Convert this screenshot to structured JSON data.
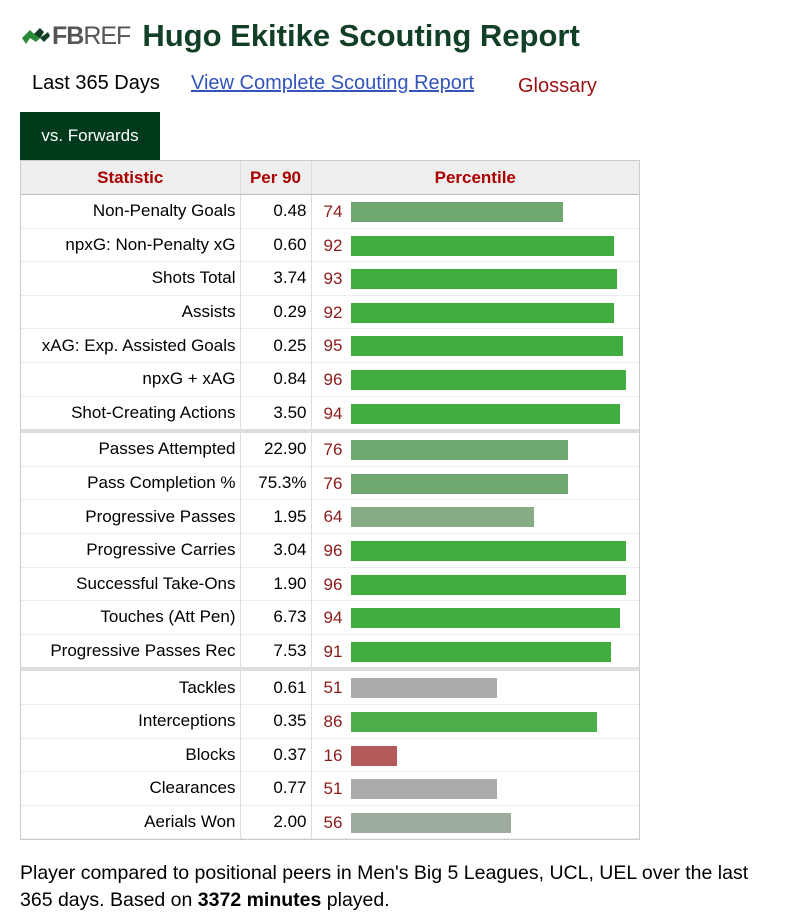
{
  "header": {
    "logo_fb": "FB",
    "logo_ref": "REF",
    "title": "Hugo Ekitike Scouting Report"
  },
  "nav": {
    "period": "Last 365 Days",
    "full_report": "View Complete Scouting Report",
    "glossary": "Glossary"
  },
  "tab": {
    "label": "vs. Forwards"
  },
  "table": {
    "headers": [
      "Statistic",
      "Per 90",
      "Percentile"
    ],
    "groups": [
      [
        {
          "stat": "Non-Penalty Goals",
          "per90": "0.48",
          "pct": 74,
          "color": "#6ea86e"
        },
        {
          "stat": "npxG: Non-Penalty xG",
          "per90": "0.60",
          "pct": 92,
          "color": "#3fae3f"
        },
        {
          "stat": "Shots Total",
          "per90": "3.74",
          "pct": 93,
          "color": "#3fae3f"
        },
        {
          "stat": "Assists",
          "per90": "0.29",
          "pct": 92,
          "color": "#3fae3f"
        },
        {
          "stat": "xAG: Exp. Assisted Goals",
          "per90": "0.25",
          "pct": 95,
          "color": "#3fae3f"
        },
        {
          "stat": "npxG + xAG",
          "per90": "0.84",
          "pct": 96,
          "color": "#3fae3f"
        },
        {
          "stat": "Shot-Creating Actions",
          "per90": "3.50",
          "pct": 94,
          "color": "#3fae3f"
        }
      ],
      [
        {
          "stat": "Passes Attempted",
          "per90": "22.90",
          "pct": 76,
          "color": "#6ea86e"
        },
        {
          "stat": "Pass Completion %",
          "per90": "75.3%",
          "pct": 76,
          "color": "#6ea86e"
        },
        {
          "stat": "Progressive Passes",
          "per90": "1.95",
          "pct": 64,
          "color": "#86ac86"
        },
        {
          "stat": "Progressive Carries",
          "per90": "3.04",
          "pct": 96,
          "color": "#3fae3f"
        },
        {
          "stat": "Successful Take-Ons",
          "per90": "1.90",
          "pct": 96,
          "color": "#3fae3f"
        },
        {
          "stat": "Touches (Att Pen)",
          "per90": "6.73",
          "pct": 94,
          "color": "#3fae3f"
        },
        {
          "stat": "Progressive Passes Rec",
          "per90": "7.53",
          "pct": 91,
          "color": "#3fae3f"
        }
      ],
      [
        {
          "stat": "Tackles",
          "per90": "0.61",
          "pct": 51,
          "color": "#aaaaaa"
        },
        {
          "stat": "Interceptions",
          "per90": "0.35",
          "pct": 86,
          "color": "#4caf4c"
        },
        {
          "stat": "Blocks",
          "per90": "0.37",
          "pct": 16,
          "color": "#b55a5a"
        },
        {
          "stat": "Clearances",
          "per90": "0.77",
          "pct": 51,
          "color": "#aaaaaa"
        },
        {
          "stat": "Aerials Won",
          "per90": "2.00",
          "pct": 56,
          "color": "#9eac9e"
        }
      ]
    ]
  },
  "footer": {
    "text_before": "Player compared to positional peers in Men's Big 5 Leagues, UCL, UEL over the last 365 days. Based on ",
    "minutes": "3372 minutes",
    "text_after": " played."
  }
}
